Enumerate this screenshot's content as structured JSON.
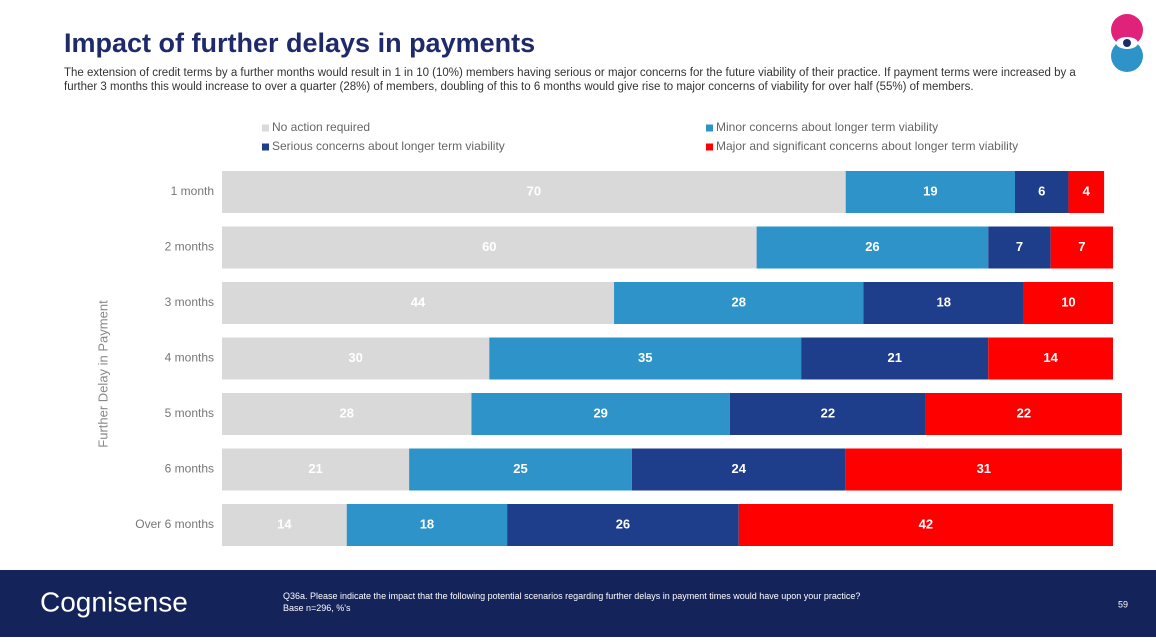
{
  "chart_data": {
    "type": "stacked-bar-horizontal",
    "title": "Impact of further delays in payments",
    "subtitle": "The extension of credit terms by a further months would result in 1 in 10 (10%) members having serious or major concerns for the future viability of their practice. If payment terms were increased by a further 3 months this would increase to over a quarter (28%) of members, doubling of this to 6 months would give rise to major concerns of viability for over half (55%) of members.",
    "y_label": "Further Delay in Payment",
    "categories": [
      "1 month",
      "2 months",
      "3 months",
      "4 months",
      "5 months",
      "6 months",
      "Over 6 months"
    ],
    "series": [
      {
        "name": "No action required",
        "color": "#d9d9d9",
        "values": [
          70,
          60,
          44,
          30,
          28,
          21,
          14
        ]
      },
      {
        "name": "Minor concerns about longer term viability",
        "color": "#2e93c9",
        "values": [
          19,
          26,
          28,
          35,
          29,
          25,
          18
        ]
      },
      {
        "name": "Serious concerns about longer term viability",
        "color": "#1e3e8c",
        "values": [
          6,
          7,
          18,
          21,
          22,
          24,
          26
        ]
      },
      {
        "name": "Major and significant concerns about longer term viability",
        "color": "#ff0000",
        "values": [
          4,
          7,
          10,
          14,
          22,
          31,
          42
        ]
      }
    ],
    "xlim": [
      0,
      100
    ],
    "footer": {
      "brand": "Cognisense",
      "question": "Q36a. Please indicate the impact that the following potential scenarios regarding further delays in payment times would have upon your practice?",
      "base": "Base n=296, %'s",
      "page": "59"
    }
  }
}
